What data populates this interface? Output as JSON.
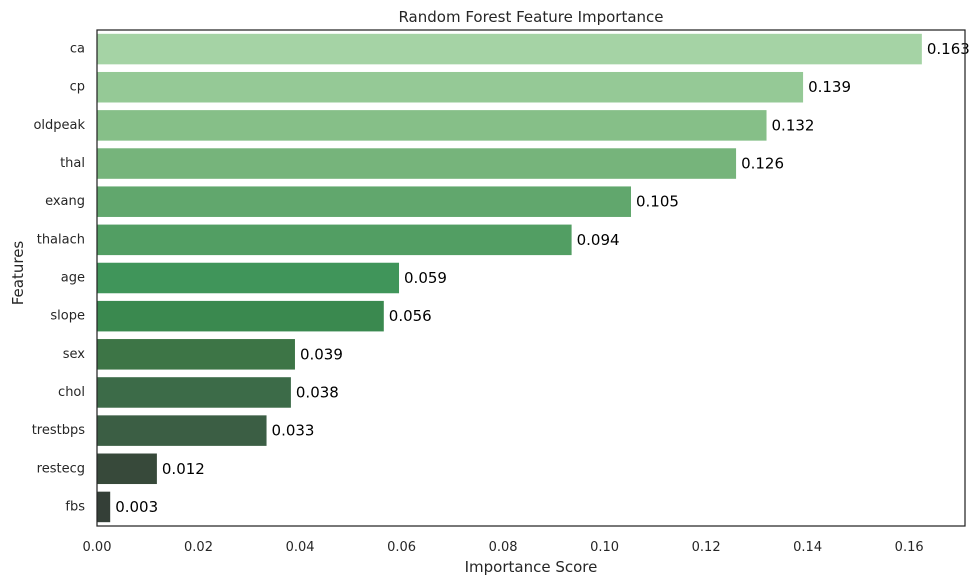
{
  "chart_data": {
    "type": "bar",
    "orientation": "horizontal",
    "title": "Random Forest Feature Importance",
    "xlabel": "Importance Score",
    "ylabel": "Features",
    "xlim": [
      0,
      0.171
    ],
    "xticks": [
      0,
      0.02,
      0.04,
      0.06,
      0.08,
      0.1,
      0.12,
      0.14,
      0.16
    ],
    "xtick_labels": [
      "0.00",
      "0.02",
      "0.04",
      "0.06",
      "0.08",
      "0.10",
      "0.12",
      "0.14",
      "0.16"
    ],
    "grid": false,
    "legend": "none",
    "categories": [
      "ca",
      "cp",
      "oldpeak",
      "thal",
      "exang",
      "thalach",
      "age",
      "slope",
      "sex",
      "chol",
      "trestbps",
      "restecg",
      "fbs"
    ],
    "values": [
      0.1625,
      0.1391,
      0.1319,
      0.1259,
      0.1052,
      0.0935,
      0.0595,
      0.0565,
      0.039,
      0.0382,
      0.0334,
      0.0118,
      0.0026
    ],
    "data_labels": [
      "0.163",
      "0.139",
      "0.132",
      "0.126",
      "0.105",
      "0.094",
      "0.059",
      "0.056",
      "0.039",
      "0.038",
      "0.033",
      "0.012",
      "0.003"
    ],
    "colors": [
      "#a5d3a5",
      "#95c996",
      "#86bf88",
      "#76b47b",
      "#61a76d",
      "#529e63",
      "#40955a",
      "#3a894f",
      "#3d7546",
      "#3c6b48",
      "#3b5e44",
      "#37493a",
      "#343f37"
    ]
  }
}
